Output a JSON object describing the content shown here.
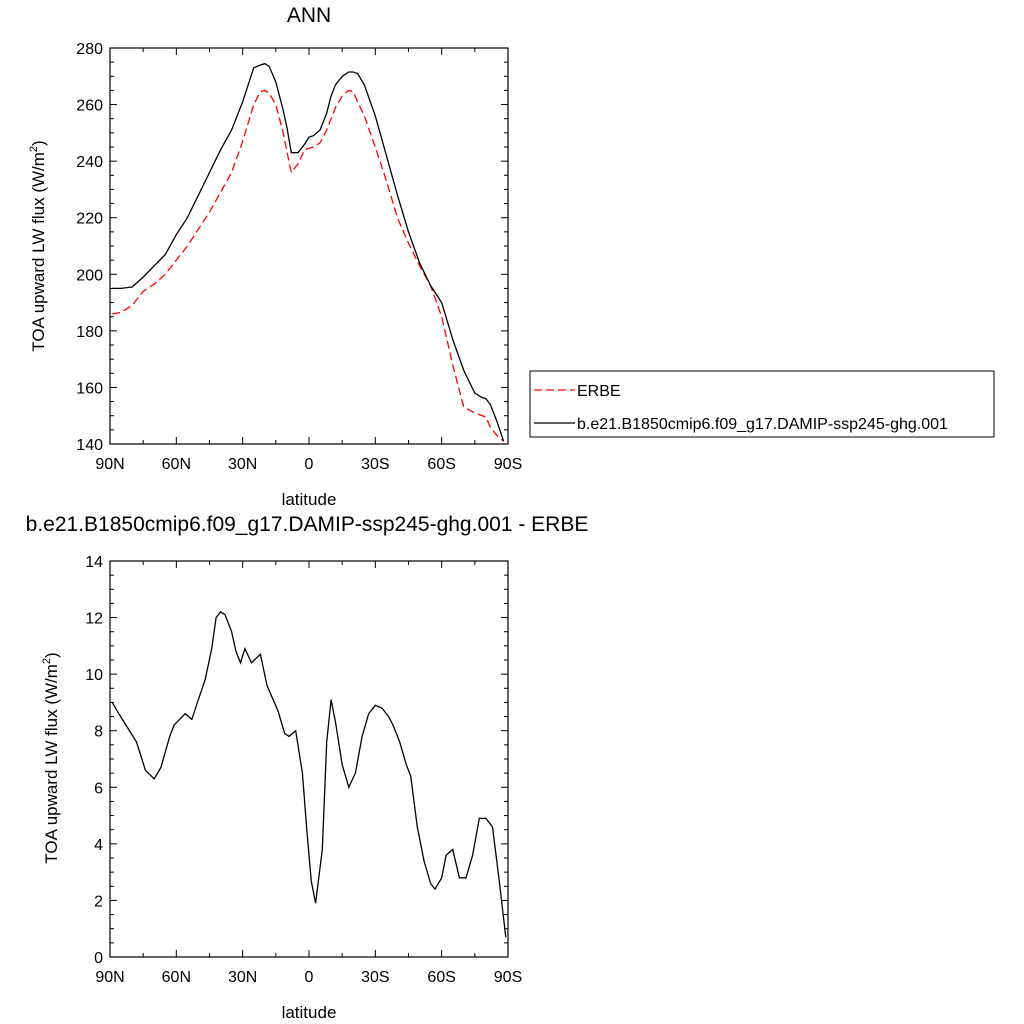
{
  "chart_data": [
    {
      "type": "line",
      "title": "ANN",
      "xlabel": "latitude",
      "ylabel": "TOA upward LW flux (W/m",
      "ylabel_sup": "2",
      "ylabel_close": ")",
      "xlim": [
        90,
        -90
      ],
      "ylim": [
        140,
        280
      ],
      "xticks": [
        90,
        60,
        30,
        0,
        -30,
        -60,
        -90
      ],
      "xtick_labels": [
        "90N",
        "60N",
        "30N",
        "0",
        "30S",
        "60S",
        "90S"
      ],
      "yticks": [
        140,
        160,
        180,
        200,
        220,
        240,
        260,
        280
      ],
      "ytick_labels": [
        "140",
        "160",
        "180",
        "200",
        "220",
        "240",
        "260",
        "280"
      ],
      "legend_position": "right",
      "series": [
        {
          "name": "ERBE",
          "color": "#ff0000",
          "dash": "dashed",
          "x": [
            89,
            85,
            80,
            75,
            70,
            65,
            60,
            55,
            50,
            45,
            40,
            35,
            30,
            25,
            22,
            20,
            18,
            15,
            12,
            8,
            5,
            2,
            0,
            -2,
            -5,
            -8,
            -10,
            -12,
            -15,
            -18,
            -20,
            -22,
            -25,
            -30,
            -35,
            -40,
            -45,
            -50,
            -55,
            -60,
            -65,
            -70,
            -75,
            -80,
            -82,
            -85,
            -88
          ],
          "y": [
            186,
            186.5,
            189,
            194,
            196.5,
            200,
            205,
            210,
            216,
            222,
            229,
            236,
            247,
            260,
            264.5,
            265,
            264,
            260,
            251,
            236,
            239,
            244,
            244.5,
            245,
            246.5,
            251,
            255,
            259,
            263,
            265,
            264.5,
            261,
            256,
            245,
            233,
            220,
            211,
            203,
            196,
            185,
            168,
            153,
            151,
            149.5,
            146,
            143,
            141
          ]
        },
        {
          "name": "b.e21.B1850cmip6.f09_g17.DAMIP-ssp245-ghg.001",
          "color": "#000000",
          "dash": "solid",
          "x": [
            89,
            85,
            80,
            75,
            70,
            65,
            60,
            55,
            50,
            45,
            40,
            35,
            30,
            25,
            22,
            20,
            18,
            15,
            12,
            10,
            8,
            5,
            2,
            0,
            -2,
            -5,
            -8,
            -10,
            -12,
            -15,
            -18,
            -20,
            -22,
            -25,
            -30,
            -35,
            -40,
            -45,
            -50,
            -55,
            -60,
            -65,
            -70,
            -75,
            -78,
            -80,
            -82,
            -85,
            -88
          ],
          "y": [
            195,
            195,
            195.5,
            199,
            203,
            207,
            214,
            220,
            228,
            236,
            244,
            251,
            261,
            273,
            274,
            274.5,
            273.5,
            268,
            259,
            252,
            243,
            243,
            246,
            248.5,
            249,
            251,
            257,
            263,
            267,
            270,
            271.5,
            271.5,
            271,
            267,
            256,
            242,
            228,
            215,
            204,
            196,
            190,
            177,
            166,
            158,
            156.5,
            156,
            154,
            148,
            141
          ]
        }
      ]
    },
    {
      "type": "line",
      "title": "b.e21.B1850cmip6.f09_g17.DAMIP-ssp245-ghg.001 - ERBE",
      "xlabel": "latitude",
      "ylabel": "TOA upward LW flux (W/m",
      "ylabel_sup": "2",
      "ylabel_close": ")",
      "xlim": [
        90,
        -90
      ],
      "ylim": [
        0,
        14
      ],
      "xticks": [
        90,
        60,
        30,
        0,
        -30,
        -60,
        -90
      ],
      "xtick_labels": [
        "90N",
        "60N",
        "30N",
        "0",
        "30S",
        "60S",
        "90S"
      ],
      "yticks": [
        0,
        2,
        4,
        6,
        8,
        10,
        12,
        14
      ],
      "ytick_labels": [
        "0",
        "2",
        "4",
        "6",
        "8",
        "10",
        "12",
        "14"
      ],
      "series": [
        {
          "color": "#000000",
          "dash": "solid",
          "x": [
            89,
            86,
            82,
            78,
            76,
            74,
            70,
            67,
            63,
            61,
            56,
            53,
            50,
            47,
            44,
            42,
            40,
            38,
            35,
            33,
            31,
            29,
            26,
            22,
            19,
            14,
            11,
            9,
            6,
            3,
            1,
            -1,
            -3,
            -6,
            -8,
            -10,
            -12,
            -15,
            -18,
            -21,
            -24,
            -27,
            -30,
            -33,
            -36,
            -38,
            -41,
            -44,
            -46,
            -49,
            -52,
            -55,
            -57,
            -60,
            -62,
            -65,
            -68,
            -71,
            -74,
            -77,
            -80,
            -83,
            -86,
            -89
          ],
          "y": [
            9.0,
            8.6,
            8.1,
            7.6,
            7.1,
            6.6,
            6.3,
            6.7,
            7.8,
            8.2,
            8.6,
            8.4,
            9.1,
            9.8,
            10.9,
            12.0,
            12.2,
            12.1,
            11.5,
            10.8,
            10.4,
            10.9,
            10.4,
            10.7,
            9.6,
            8.7,
            7.9,
            7.8,
            8.0,
            6.5,
            4.5,
            2.7,
            1.9,
            3.8,
            7.6,
            9.1,
            8.3,
            6.8,
            6.0,
            6.5,
            7.8,
            8.6,
            8.9,
            8.8,
            8.5,
            8.2,
            7.6,
            6.8,
            6.4,
            4.6,
            3.4,
            2.6,
            2.4,
            2.8,
            3.6,
            3.8,
            2.8,
            2.8,
            3.6,
            4.9,
            4.9,
            4.6,
            2.7,
            0.7
          ]
        }
      ]
    }
  ]
}
